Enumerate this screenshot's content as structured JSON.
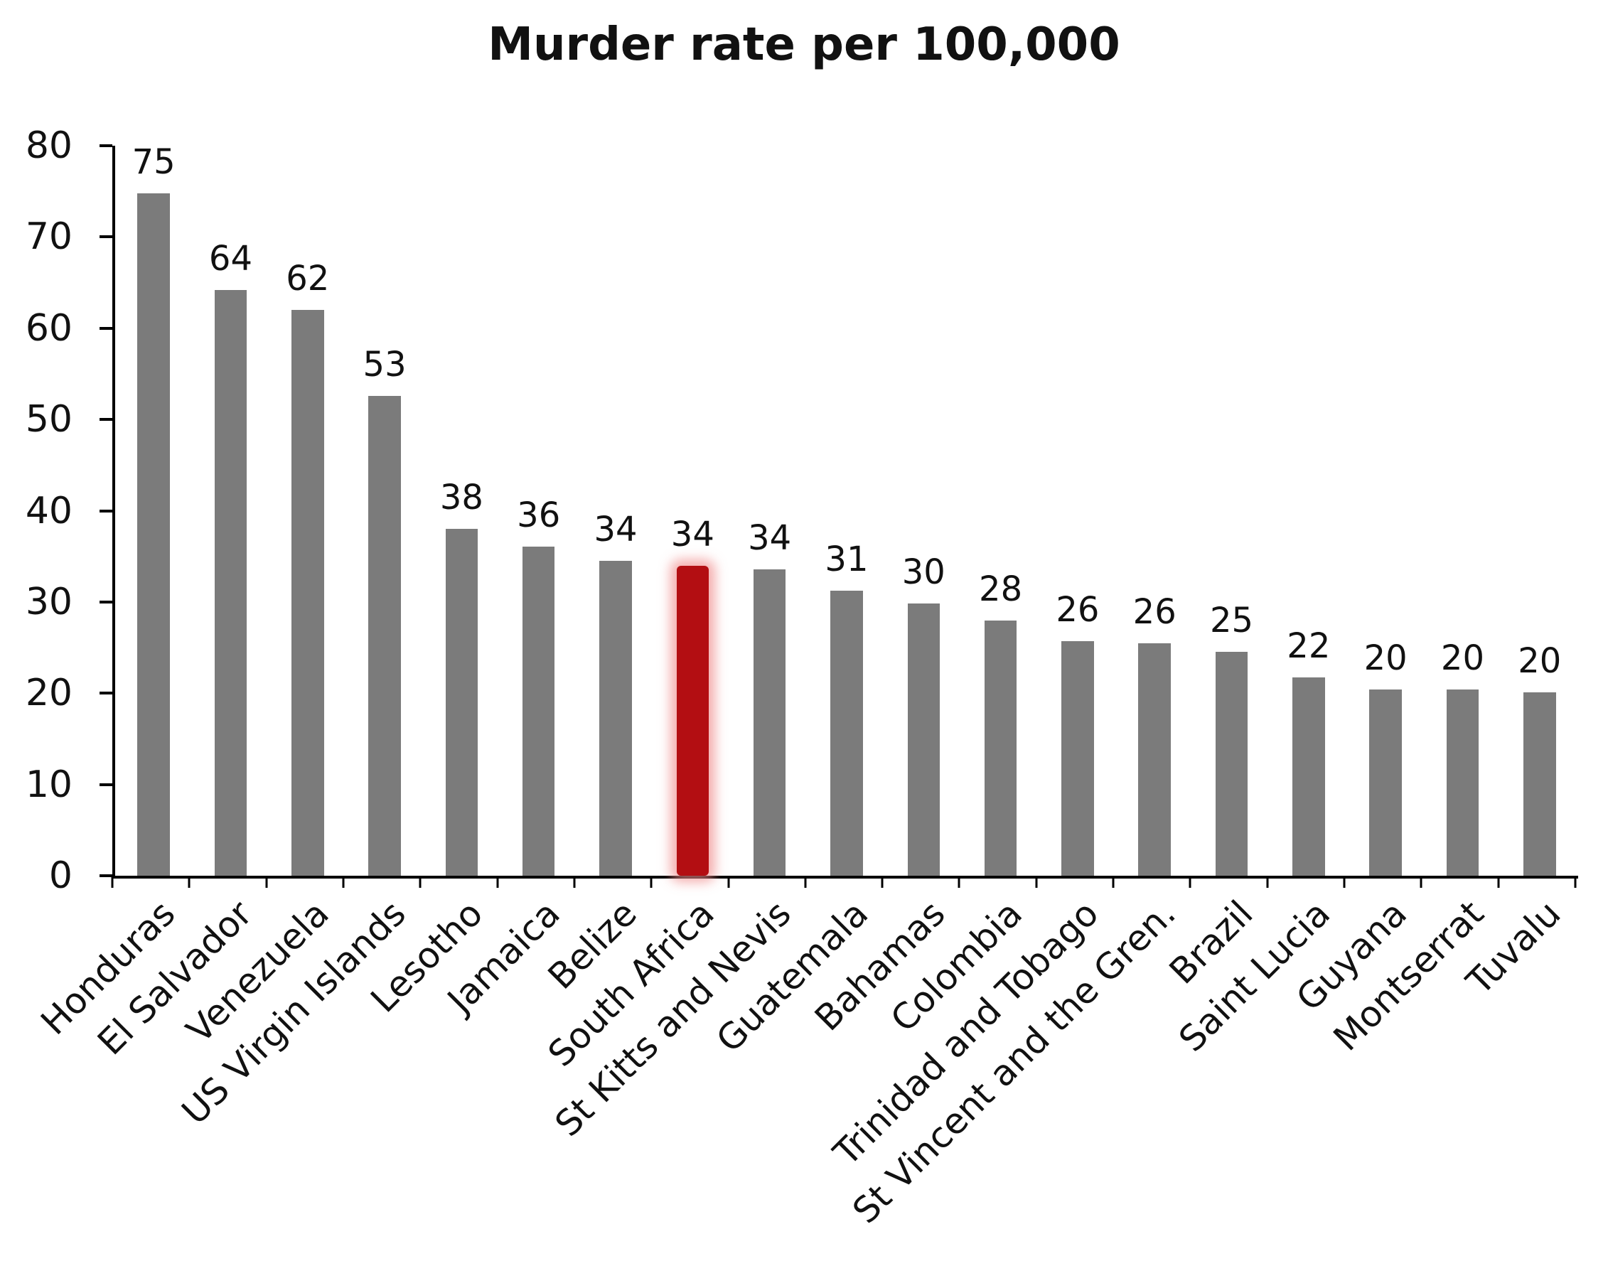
{
  "chart_data": {
    "type": "bar",
    "title": "Murder rate per 100,000",
    "categories": [
      "Honduras",
      "El Salvador",
      "Venezuela",
      "US Virgin Islands",
      "Lesotho",
      "Jamaica",
      "Belize",
      "South Africa",
      "St Kitts and Nevis",
      "Guatemala",
      "Bahamas",
      "Colombia",
      "Trinidad and Tobago",
      "St Vincent and the Gren.",
      "Brazil",
      "Saint Lucia",
      "Guyana",
      "Montserrat",
      "Tuvalu"
    ],
    "values": [
      74.8,
      64.2,
      62.0,
      52.6,
      38.0,
      36.1,
      34.5,
      34.0,
      33.6,
      31.2,
      29.8,
      28.0,
      25.7,
      25.5,
      24.5,
      21.7,
      20.4,
      20.4,
      20.1
    ],
    "labels": [
      "75",
      "64",
      "62",
      "53",
      "38",
      "36",
      "34",
      "34",
      "34",
      "31",
      "30",
      "28",
      "26",
      "26",
      "25",
      "22",
      "20",
      "20",
      "20"
    ],
    "ylim": [
      0,
      80
    ],
    "yticks": [
      0,
      10,
      20,
      30,
      40,
      50,
      60,
      70,
      80
    ],
    "xlabel": "",
    "ylabel": "",
    "grid": false,
    "legend": "none",
    "highlight_index": 7,
    "highlight_category": "South Africa",
    "bar_color": "#7b7b7b",
    "highlight_color": "#b30e12",
    "highlight_glow_color": "#f08c8c",
    "axis_color": "#000000",
    "text_color": "#111111",
    "background_color": "#ffffff"
  }
}
